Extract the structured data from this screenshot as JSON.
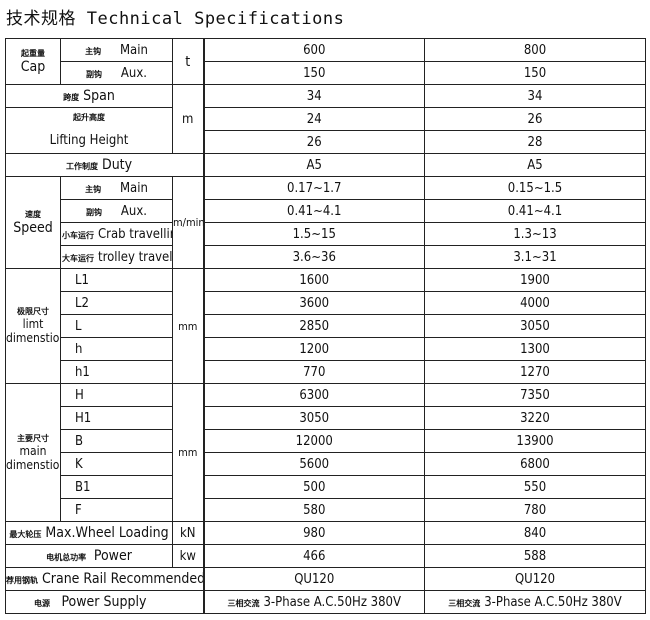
{
  "title": "技术规格 Technical Specifications",
  "columns": [
    "",
    "",
    ""
  ],
  "rows": {
    "cap": {
      "cn": "起重量",
      "en": "Cap",
      "unit": "t"
    },
    "main": {
      "cn": "主钩",
      "en": "Main",
      "v": [
        "600",
        "800"
      ]
    },
    "aux": {
      "cn": "副钩",
      "en": "Aux.",
      "v": [
        "150",
        "150"
      ]
    },
    "span": {
      "cn": "跨度",
      "en": "Span",
      "unit": "m",
      "v": [
        "34",
        "34"
      ]
    },
    "lift": {
      "cn": "起升高度",
      "en": "Lifting Height",
      "v1": [
        "24",
        "26"
      ],
      "v2": [
        "26",
        "28"
      ]
    },
    "duty": {
      "cn": "工作制度",
      "en": "Duty",
      "v": [
        "A5",
        "A5"
      ]
    },
    "speed": {
      "cn": "速度",
      "en": "Speed",
      "unit": "m/min",
      "main": {
        "cn": "主钩",
        "en": "Main",
        "v": [
          "0.17~1.7",
          "0.15~1.5"
        ]
      },
      "aux": {
        "cn": "副钩",
        "en": "Aux.",
        "v": [
          "0.41~4.1",
          "0.41~4.1"
        ]
      },
      "crab": {
        "cn": "小车运行",
        "en": "Crab travelling",
        "v": [
          "1.5~15",
          "1.3~13"
        ]
      },
      "trolley": {
        "cn": "大车运行",
        "en": "trolley travelling",
        "v": [
          "3.6~36",
          "3.1~31"
        ]
      }
    },
    "limit": {
      "cn": "极限尺寸",
      "en1": "limt",
      "en2": "dimenstion",
      "unit": "mm",
      "items": [
        {
          "k": "L1",
          "v": [
            "1600",
            "1900"
          ]
        },
        {
          "k": "L2",
          "v": [
            "3600",
            "4000"
          ]
        },
        {
          "k": "L",
          "v": [
            "2850",
            "3050"
          ]
        },
        {
          "k": "h",
          "v": [
            "1200",
            "1300"
          ]
        },
        {
          "k": "h1",
          "v": [
            "770",
            "1270"
          ]
        }
      ]
    },
    "maindim": {
      "cn": "主要尺寸",
      "en1": "main",
      "en2": "dimenstion",
      "unit": "mm",
      "items": [
        {
          "k": "H",
          "v": [
            "6300",
            "7350"
          ]
        },
        {
          "k": "H1",
          "v": [
            "3050",
            "3220"
          ]
        },
        {
          "k": "B",
          "v": [
            "12000",
            "13900"
          ]
        },
        {
          "k": "K",
          "v": [
            "5600",
            "6800"
          ]
        },
        {
          "k": "B1",
          "v": [
            "500",
            "550"
          ]
        },
        {
          "k": "F",
          "v": [
            "580",
            "780"
          ]
        }
      ]
    },
    "wheel": {
      "cn": "最大轮压",
      "en": "Max.Wheel Loading",
      "unit": "kN",
      "v": [
        "980",
        "840"
      ]
    },
    "power": {
      "cn": "电机总功率",
      "en": "Power",
      "unit": "kw",
      "v": [
        "466",
        "588"
      ]
    },
    "rail": {
      "cn": "荐用钢轨",
      "en": "Crane Rail Recommended",
      "v": [
        "QU120",
        "QU120"
      ]
    },
    "supply": {
      "cn": "电源",
      "en": "Power Supply",
      "vcn": "三相交流",
      "v": [
        "3-Phase A.C.50Hz 380V",
        "3-Phase A.C.50Hz 380V"
      ]
    }
  }
}
